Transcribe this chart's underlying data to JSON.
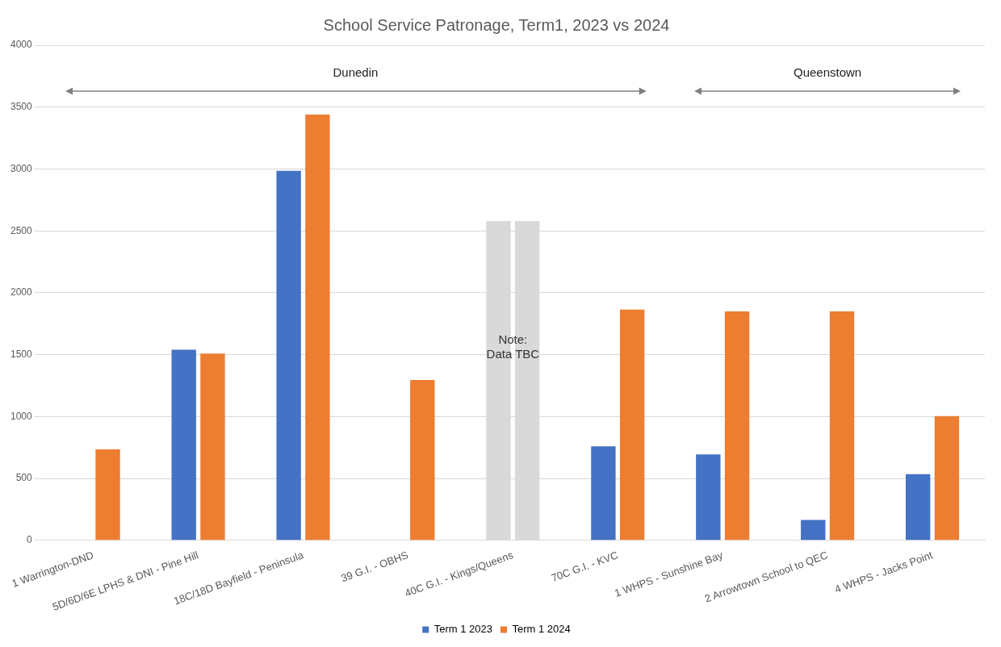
{
  "chart_data": {
    "type": "bar",
    "title": "School Service Patronage, Term1, 2023 vs 2024",
    "categories": [
      "1 Warrington-DND",
      "5D/6D/6E LPHS & DNI - Pine Hill",
      "18C/18D Bayfield - Peninsula",
      "39 G.I. - OBHS",
      "40C G.I. - Kings/Queens",
      "70C G.I. - KVC",
      "1 WHPS - Sunshine Bay",
      "2 Arrowtown School to QEC",
      "4 WHPS - Jacks Point"
    ],
    "series": [
      {
        "name": "Term 1 2023",
        "color": "#4472c4",
        "colors": [
          "#4472c4",
          "#4472c4",
          "#4472c4",
          "#4472c4",
          "#d9d9d9",
          "#4472c4",
          "#4472c4",
          "#4472c4",
          "#4472c4"
        ],
        "values": [
          null,
          1540,
          2985,
          null,
          2580,
          760,
          695,
          165,
          535
        ]
      },
      {
        "name": "Term 1 2024",
        "color": "#ed7d31",
        "colors": [
          "#ed7d31",
          "#ed7d31",
          "#ed7d31",
          "#ed7d31",
          "#d9d9d9",
          "#ed7d31",
          "#ed7d31",
          "#ed7d31",
          "#ed7d31"
        ],
        "values": [
          735,
          1510,
          3440,
          1295,
          2580,
          1865,
          1850,
          1850,
          1005
        ]
      }
    ],
    "ylim": [
      0,
      4000
    ],
    "yticks": [
      0,
      500,
      1000,
      1500,
      2000,
      2500,
      3000,
      3500,
      4000
    ],
    "grid": "y",
    "legend": "bottom",
    "annotations": [
      "Dunedin",
      "Queenstown",
      {
        "text": "Note:\nData TBC",
        "x": "40C G.I. - Kings/Queens",
        "y": 1560
      }
    ]
  }
}
